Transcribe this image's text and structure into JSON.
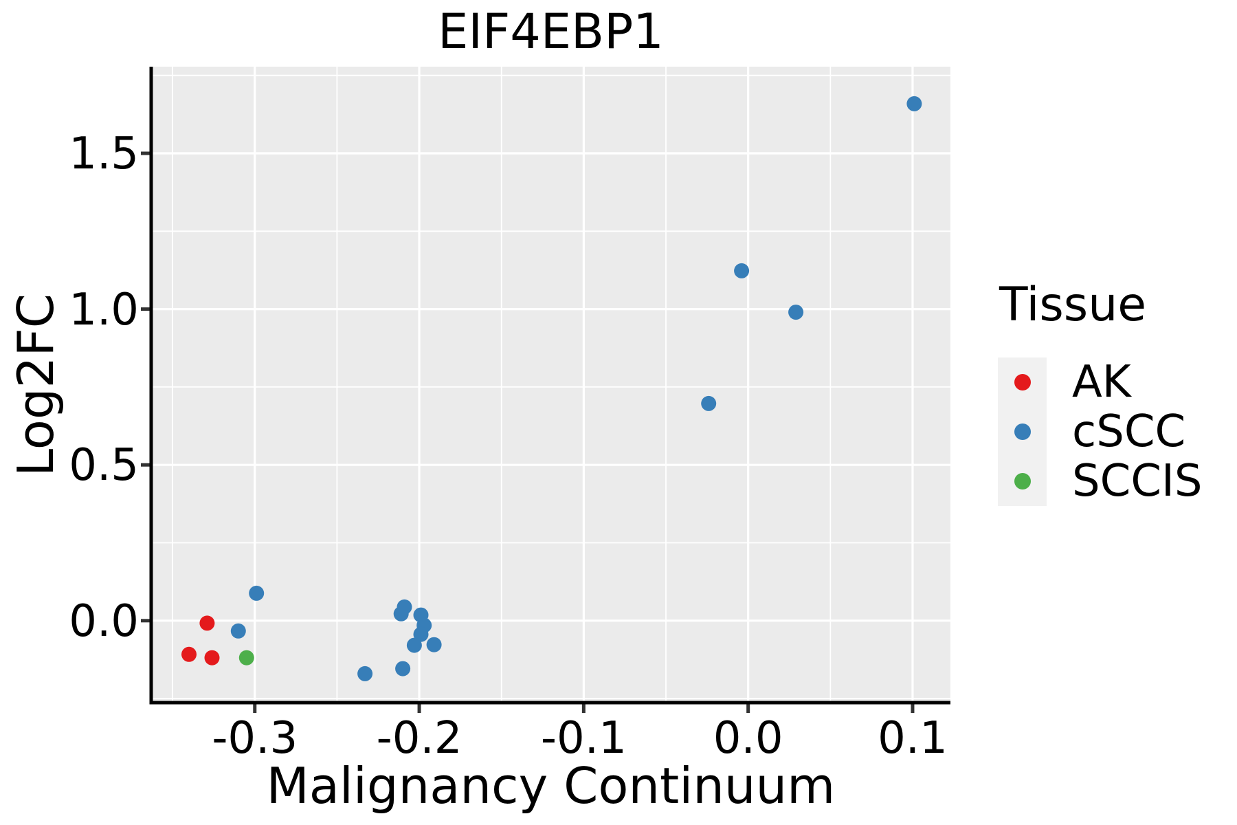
{
  "chart_data": {
    "type": "scatter",
    "title": "EIF4EBP1",
    "xlabel": "Malignancy Continuum",
    "ylabel": "Log2FC",
    "xlim": [
      -0.363,
      0.123
    ],
    "ylim": [
      -0.263,
      1.778
    ],
    "x_major_ticks": [
      -0.3,
      -0.2,
      -0.1,
      0.0,
      0.1
    ],
    "x_tick_labels": [
      "-0.3",
      "-0.2",
      "-0.1",
      "0.0",
      "0.1"
    ],
    "x_minor_ticks": [
      -0.35,
      -0.25,
      -0.15,
      -0.05,
      0.05
    ],
    "y_major_ticks": [
      0.0,
      0.5,
      1.0,
      1.5
    ],
    "y_tick_labels": [
      "0.0",
      "0.5",
      "1.0",
      "1.5"
    ],
    "y_minor_ticks": [
      -0.25,
      0.25,
      0.75,
      1.25,
      1.75
    ],
    "grid": "on",
    "panel_color": "#ebebeb",
    "gridline_color": "#ffffff",
    "legend_position": "right",
    "legend": {
      "title": "Tissue",
      "entries": [
        {
          "label": "AK",
          "color": "#e41a1c"
        },
        {
          "label": "cSCC",
          "color": "#377eb8"
        },
        {
          "label": "SCCIS",
          "color": "#4daf4a"
        }
      ]
    },
    "series": [
      {
        "name": "AK",
        "color": "#e41a1c",
        "points": [
          [
            -0.329,
            -0.008
          ],
          [
            -0.34,
            -0.108
          ],
          [
            -0.326,
            -0.119
          ]
        ]
      },
      {
        "name": "cSCC",
        "color": "#377eb8",
        "points": [
          [
            -0.299,
            0.088
          ],
          [
            -0.31,
            -0.033
          ],
          [
            -0.209,
            0.044
          ],
          [
            -0.211,
            0.022
          ],
          [
            -0.199,
            0.018
          ],
          [
            -0.197,
            -0.015
          ],
          [
            -0.199,
            -0.044
          ],
          [
            -0.203,
            -0.079
          ],
          [
            -0.191,
            -0.077
          ],
          [
            -0.21,
            -0.154
          ],
          [
            -0.233,
            -0.17
          ],
          [
            -0.024,
            0.697
          ],
          [
            -0.004,
            1.123
          ],
          [
            0.029,
            0.99
          ],
          [
            0.101,
            1.659
          ]
        ]
      },
      {
        "name": "SCCIS",
        "color": "#4daf4a",
        "points": [
          [
            -0.305,
            -0.119
          ]
        ]
      }
    ]
  }
}
